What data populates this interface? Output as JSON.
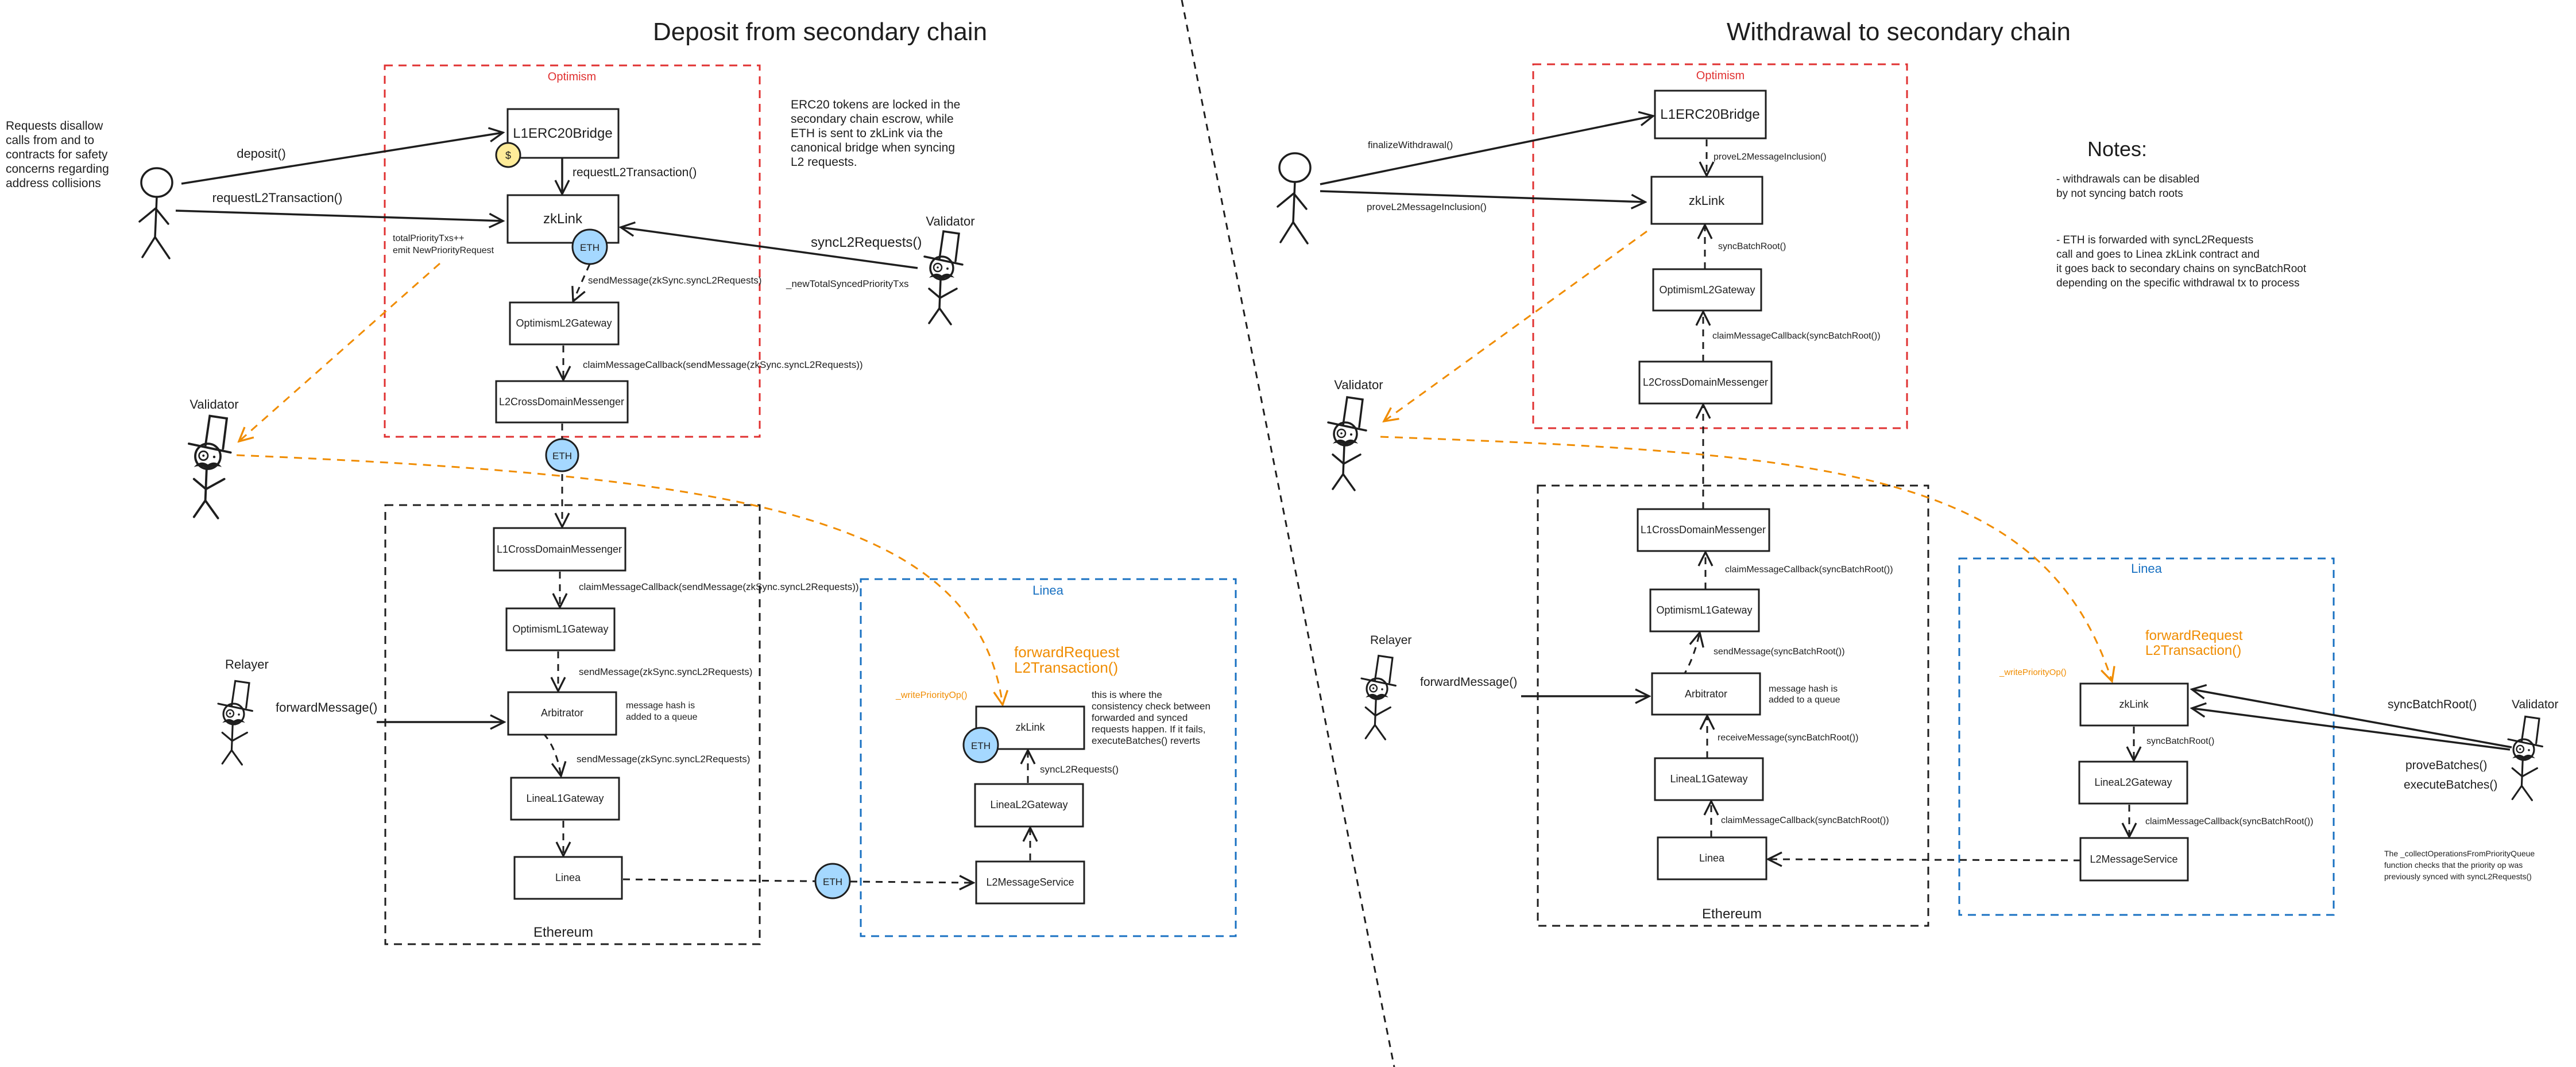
{
  "colors": {
    "optimism": "#e03131",
    "linea": "#1971c2",
    "ethereum": "#1e1e1e",
    "validator_flow": "#f08c00",
    "eth_token": "#a5d8ff",
    "erc20_token": "#ffec99"
  },
  "deposit": {
    "title": "Deposit from secondary chain",
    "optimism_label": "Optimism",
    "ethereum_label": "Ethereum",
    "linea_label": "Linea",
    "user_note": [
      "Requests disallow",
      "calls from and to",
      "contracts for safety",
      "concerns regarding",
      "address collisions"
    ],
    "erc20_note": [
      "ERC20 tokens are locked in the",
      "secondary chain escrow, while",
      "ETH is sent to zkLink via the",
      "canonical bridge when syncing",
      "L2 requests."
    ],
    "boxes": {
      "l1erc20bridge": "L1ERC20Bridge",
      "zklink_op": "zkLink",
      "optimism_l2_gateway": "OptimismL2Gateway",
      "l2_cross_domain_messenger": "L2CrossDomainMessenger",
      "l1_cross_domain_messenger": "L1CrossDomainMessenger",
      "optimism_l1_gateway": "OptimismL1Gateway",
      "arbitrator": "Arbitrator",
      "linea_l1_gateway": "LineaL1Gateway",
      "linea": "Linea",
      "zklink_linea": "zkLink",
      "linea_l2_gateway": "LineaL2Gateway",
      "l2_message_service": "L2MessageService"
    },
    "tokens": {
      "dollar": "$",
      "eth": "ETH"
    },
    "labels": {
      "deposit": "deposit()",
      "request_l2_tx_user": "requestL2Transaction()",
      "request_l2_tx_bridge": "requestL2Transaction()",
      "total_priority": "totalPriorityTxs++",
      "emit_request": "emit NewPriorityRequest",
      "send_message_op": "sendMessage(zkSync.syncL2Requests)",
      "new_total_synced": "_newTotalSyncedPriorityTxs",
      "sync_l2_requests": "syncL2Requests()",
      "claim_callback_op": "claimMessageCallback(sendMessage(zkSync.syncL2Requests))",
      "claim_callback_eth": "claimMessageCallback(sendMessage(zkSync.syncL2Requests))",
      "send_message_eth_1": "sendMessage(zkSync.syncL2Requests)",
      "message_hash_note": [
        "message hash is",
        "added to a queue"
      ],
      "send_message_eth_2": "sendMessage(zkSync.syncL2Requests)",
      "forward_message": "forwardMessage()",
      "forward_request": [
        "forwardRequest",
        "L2Transaction()"
      ],
      "write_priority_op": "_writePriorityOp()",
      "consistency_note": [
        "this is where the",
        "consistency check between",
        "forwarded and synced",
        "requests happen. If it fails,",
        "executeBatches() reverts"
      ],
      "sync_l2_requests_linea": "syncL2Requests()"
    },
    "actors": {
      "validator_top": "Validator",
      "validator_left": "Validator",
      "relayer": "Relayer"
    }
  },
  "withdrawal": {
    "title": "Withdrawal to secondary chain",
    "optimism_label": "Optimism",
    "ethereum_label": "Ethereum",
    "linea_label": "Linea",
    "boxes": {
      "l1erc20bridge": "L1ERC20Bridge",
      "zklink_op": "zkLink",
      "optimism_l2_gateway": "OptimismL2Gateway",
      "l2_cross_domain_messenger": "L2CrossDomainMessenger",
      "l1_cross_domain_messenger": "L1CrossDomainMessenger",
      "optimism_l1_gateway": "OptimismL1Gateway",
      "arbitrator": "Arbitrator",
      "linea_l1_gateway": "LineaL1Gateway",
      "linea": "Linea",
      "zklink_linea": "zkLink",
      "linea_l2_gateway": "LineaL2Gateway",
      "l2_message_service": "L2MessageService"
    },
    "labels": {
      "finalize_withdrawal": "finalizeWithdrawal()",
      "prove_inclusion_user": "proveL2MessageInclusion()",
      "prove_inclusion_bridge": "proveL2MessageInclusion()",
      "sync_batch_root_op": "syncBatchRoot()",
      "claim_callback_op": "claimMessageCallback(syncBatchRoot())",
      "claim_callback_eth_1": "claimMessageCallback(syncBatchRoot())",
      "send_message": "sendMessage(syncBatchRoot())",
      "message_hash_note": [
        "message hash is",
        "added to a queue"
      ],
      "receive_message": "receiveMessage(syncBatchRoot())",
      "claim_callback_eth_2": "claimMessageCallback(syncBatchRoot())",
      "forward_message": "forwardMessage()",
      "forward_request": [
        "forwardRequest",
        "L2Transaction()"
      ],
      "write_priority_op": "_writePriorityOp()",
      "sync_batch_root_linea": "syncBatchRoot()",
      "claim_callback_linea": "claimMessageCallback(syncBatchRoot())",
      "sync_batch_root_validator": "syncBatchRoot()",
      "prove_batches": "proveBatches()",
      "execute_batches": "executeBatches()",
      "collect_note": [
        "The _collectOperationsFromPriorityQueue",
        "function checks that the priority op was",
        "previously synced with syncL2Requests()"
      ]
    },
    "actors": {
      "validator_left": "Validator",
      "validator_right": "Validator",
      "relayer": "Relayer"
    },
    "notes": {
      "heading": "Notes:",
      "note1": [
        "- withdrawals can be disabled",
        "by not syncing batch roots"
      ],
      "note2": [
        "- ETH is forwarded with syncL2Requests",
        "call and goes to Linea zkLink contract and",
        "it goes back to secondary chains on syncBatchRoot",
        "depending on the specific withdrawal tx to process"
      ]
    }
  }
}
